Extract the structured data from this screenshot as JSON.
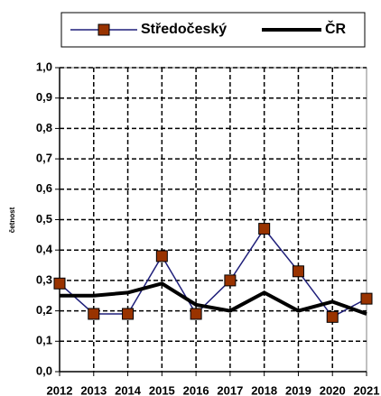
{
  "chart_data": {
    "type": "line",
    "y_label": "četnost",
    "categories": [
      "2012",
      "2013",
      "2014",
      "2015",
      "2016",
      "2017",
      "2018",
      "2019",
      "2020",
      "2021"
    ],
    "series": [
      {
        "name": "Středočeský",
        "color": "#1f1f7a",
        "marker_color": "#993300",
        "marker": "square",
        "values": [
          0.29,
          0.19,
          0.19,
          0.38,
          0.19,
          0.3,
          0.47,
          0.33,
          0.18,
          0.24
        ]
      },
      {
        "name": "ČR",
        "color": "#000000",
        "values": [
          0.25,
          0.25,
          0.26,
          0.29,
          0.22,
          0.2,
          0.26,
          0.2,
          0.23,
          0.19
        ]
      }
    ],
    "ylim": [
      0,
      1
    ],
    "yticks": [
      {
        "value": 0,
        "label": "0,0"
      },
      {
        "value": 0.1,
        "label": "0,1"
      },
      {
        "value": 0.2,
        "label": "0,2"
      },
      {
        "value": 0.3,
        "label": "0,3"
      },
      {
        "value": 0.4,
        "label": "0,4"
      },
      {
        "value": 0.5,
        "label": "0,5"
      },
      {
        "value": 0.6,
        "label": "0,6"
      },
      {
        "value": 0.7,
        "label": "0,7"
      },
      {
        "value": 0.8,
        "label": "0,8"
      },
      {
        "value": 0.9,
        "label": "0,9"
      },
      {
        "value": 1,
        "label": "1,0"
      }
    ],
    "grid": true,
    "legend": "top"
  }
}
